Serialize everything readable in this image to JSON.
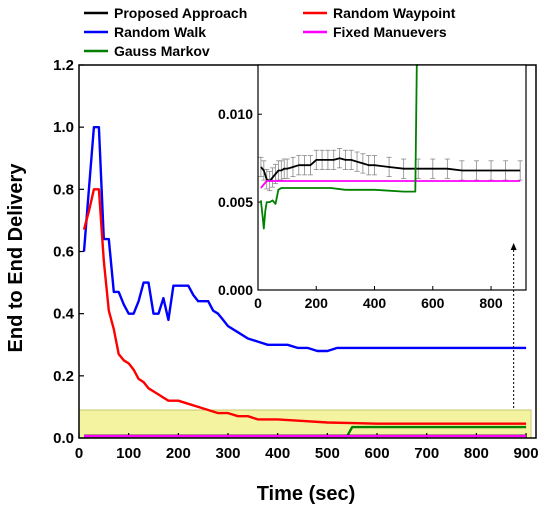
{
  "chart_data": {
    "type": "line",
    "xlabel": "Time (sec)",
    "ylabel": "End to End Delivery",
    "xlim": [
      0,
      920
    ],
    "ylim": [
      0,
      1.2
    ],
    "x_ticks": [
      "0",
      "100",
      "200",
      "300",
      "400",
      "500",
      "600",
      "700",
      "800",
      "900"
    ],
    "y_ticks": [
      "0.0",
      "0.2",
      "0.4",
      "0.6",
      "0.8",
      "1.0",
      "1.2"
    ],
    "legend": {
      "placement": "top",
      "entries": [
        {
          "name": "Proposed Approach",
          "color": "#000000"
        },
        {
          "name": "Random Waypoint",
          "color": "#ff0000"
        },
        {
          "name": "Random Walk",
          "color": "#0000ff"
        },
        {
          "name": "Fixed Manuevers",
          "color": "#ff00ff"
        },
        {
          "name": "Gauss Markov",
          "color": "#008000"
        }
      ]
    },
    "highlight_region": {
      "x": [
        0,
        910
      ],
      "y": [
        0,
        0.09
      ],
      "color": "#f4f4a0"
    },
    "series": [
      {
        "name": "Random Walk",
        "color": "#0000ff",
        "x": [
          10,
          20,
          30,
          40,
          50,
          60,
          70,
          80,
          90,
          100,
          110,
          120,
          130,
          140,
          150,
          160,
          170,
          180,
          190,
          200,
          210,
          220,
          230,
          240,
          250,
          260,
          270,
          280,
          290,
          300,
          320,
          340,
          360,
          380,
          400,
          420,
          440,
          460,
          480,
          500,
          520,
          540,
          560,
          600,
          700,
          800,
          900
        ],
        "values": [
          0.6,
          0.8,
          1.0,
          1.0,
          0.64,
          0.64,
          0.47,
          0.47,
          0.43,
          0.4,
          0.4,
          0.44,
          0.5,
          0.5,
          0.4,
          0.4,
          0.45,
          0.38,
          0.49,
          0.49,
          0.49,
          0.49,
          0.46,
          0.44,
          0.44,
          0.44,
          0.41,
          0.4,
          0.38,
          0.36,
          0.34,
          0.32,
          0.31,
          0.3,
          0.3,
          0.3,
          0.29,
          0.29,
          0.28,
          0.28,
          0.29,
          0.29,
          0.29,
          0.29,
          0.29,
          0.29,
          0.29
        ]
      },
      {
        "name": "Random Waypoint",
        "color": "#ff0000",
        "x": [
          10,
          20,
          30,
          40,
          50,
          60,
          70,
          80,
          90,
          100,
          110,
          120,
          130,
          140,
          150,
          160,
          170,
          180,
          190,
          200,
          220,
          240,
          260,
          280,
          300,
          320,
          340,
          360,
          380,
          400,
          450,
          500,
          550,
          600,
          700,
          800,
          900
        ],
        "values": [
          0.67,
          0.73,
          0.8,
          0.8,
          0.57,
          0.41,
          0.35,
          0.27,
          0.25,
          0.24,
          0.22,
          0.19,
          0.18,
          0.16,
          0.15,
          0.14,
          0.13,
          0.12,
          0.12,
          0.12,
          0.11,
          0.1,
          0.09,
          0.08,
          0.08,
          0.07,
          0.07,
          0.06,
          0.06,
          0.06,
          0.055,
          0.05,
          0.048,
          0.046,
          0.046,
          0.046,
          0.046
        ]
      },
      {
        "name": "Gauss Markov",
        "color": "#008000",
        "x": [
          10,
          50,
          100,
          200,
          300,
          400,
          500,
          540,
          550,
          600,
          700,
          800,
          900
        ],
        "values": [
          0.005,
          0.005,
          0.006,
          0.006,
          0.006,
          0.006,
          0.006,
          0.006,
          0.035,
          0.035,
          0.035,
          0.035,
          0.035
        ]
      },
      {
        "name": "Proposed Approach",
        "color": "#000000",
        "x": [
          10,
          900
        ],
        "values": [
          0.007,
          0.007
        ]
      },
      {
        "name": "Fixed Manuevers",
        "color": "#ff00ff",
        "x": [
          10,
          900
        ],
        "values": [
          0.006,
          0.006
        ]
      }
    ],
    "inset": {
      "type": "line",
      "xlim": [
        0,
        920
      ],
      "ylim": [
        0,
        0.0128
      ],
      "x_ticks": [
        "0",
        "200",
        "400",
        "600",
        "800"
      ],
      "y_ticks": [
        "0.000",
        "0.005",
        "0.010"
      ],
      "series": [
        {
          "name": "Proposed Approach",
          "color": "#000000",
          "error_bars": true,
          "x": [
            10,
            20,
            30,
            40,
            50,
            60,
            70,
            80,
            90,
            100,
            120,
            140,
            160,
            180,
            200,
            220,
            240,
            260,
            280,
            300,
            320,
            340,
            360,
            380,
            400,
            450,
            500,
            550,
            600,
            650,
            700,
            750,
            800,
            850,
            900
          ],
          "values": [
            0.007,
            0.0068,
            0.0063,
            0.0062,
            0.0064,
            0.0066,
            0.0068,
            0.0068,
            0.0069,
            0.0069,
            0.007,
            0.0071,
            0.0071,
            0.0071,
            0.0074,
            0.0074,
            0.0074,
            0.0074,
            0.0075,
            0.0074,
            0.0074,
            0.0073,
            0.0072,
            0.0071,
            0.0071,
            0.007,
            0.0069,
            0.0069,
            0.0069,
            0.0069,
            0.0068,
            0.0068,
            0.0068,
            0.0068,
            0.0068
          ]
        },
        {
          "name": "Fixed Manuevers",
          "color": "#ff00ff",
          "x": [
            10,
            20,
            30,
            900
          ],
          "values": [
            0.0058,
            0.006,
            0.0062,
            0.0062
          ]
        },
        {
          "name": "Gauss Markov",
          "color": "#008000",
          "x": [
            10,
            15,
            20,
            25,
            30,
            40,
            50,
            60,
            70,
            80,
            100,
            150,
            200,
            250,
            300,
            400,
            500,
            540,
            545,
            550
          ],
          "values": [
            0.0051,
            0.0043,
            0.0035,
            0.0045,
            0.005,
            0.005,
            0.0051,
            0.0049,
            0.0057,
            0.0058,
            0.0058,
            0.0058,
            0.0058,
            0.0058,
            0.0057,
            0.0057,
            0.0056,
            0.0056,
            0.0128,
            0.0128
          ]
        }
      ]
    }
  }
}
